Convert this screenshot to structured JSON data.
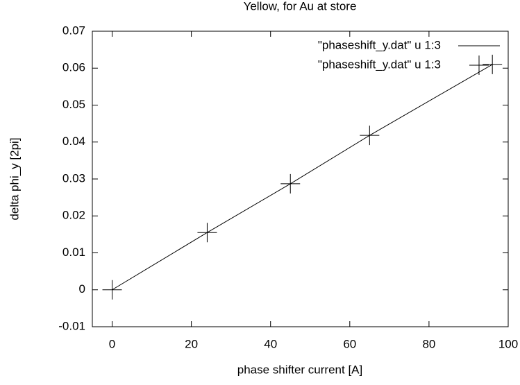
{
  "chart_data": {
    "type": "line",
    "title": "Yellow, for Au at store",
    "x_label": "phase shifter current [A]",
    "y_label": "delta phi_y [2pi]",
    "x": [
      0,
      24,
      45,
      65,
      96
    ],
    "series": [
      {
        "name": "\"phaseshift_y.dat\" u 1:3",
        "color": "#000000",
        "style": "line",
        "values": [
          0,
          0.0155,
          0.0287,
          0.0418,
          0.061
        ]
      },
      {
        "name": "\"phaseshift_y.dat\" u 1:3",
        "color": "#000000",
        "style": "points",
        "values": [
          0,
          0.0155,
          0.0287,
          0.0418,
          0.061
        ]
      }
    ],
    "xlim": [
      -5,
      100
    ],
    "ylim": [
      -0.01,
      0.07
    ],
    "xticks": [
      0,
      20,
      40,
      60,
      80,
      100
    ],
    "yticks": [
      -0.01,
      0,
      0.01,
      0.02,
      0.03,
      0.04,
      0.05,
      0.06,
      0.07
    ],
    "legend": "top-right"
  }
}
